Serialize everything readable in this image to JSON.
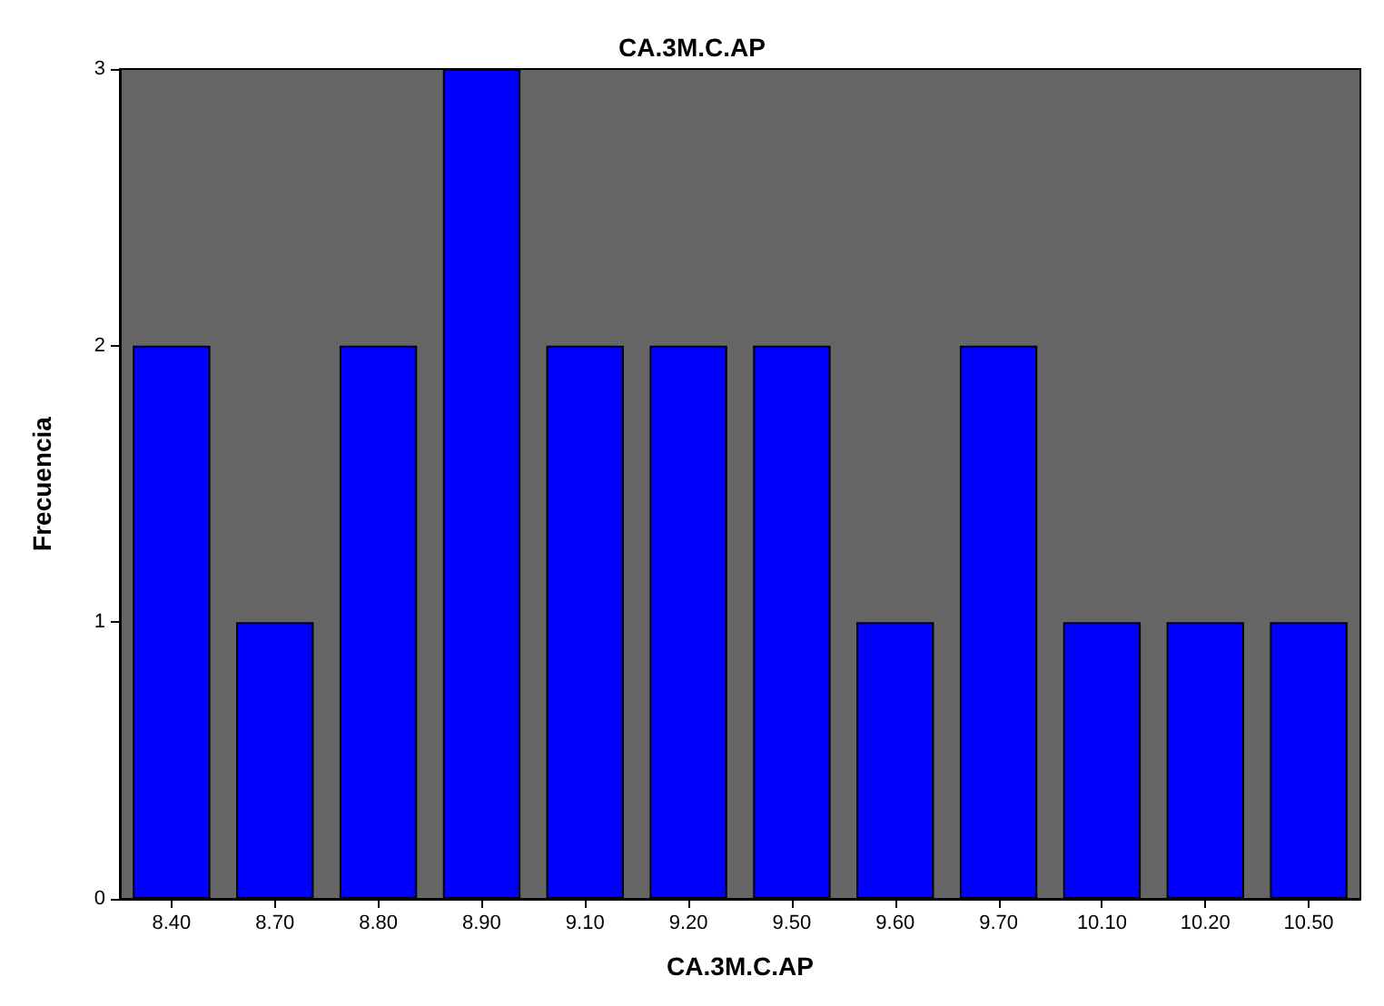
{
  "chart_data": {
    "type": "bar",
    "title": "CA.3M.C.AP",
    "xlabel": "CA.3M.C.AP",
    "ylabel": "Frecuencia",
    "categories": [
      "8.40",
      "8.70",
      "8.80",
      "8.90",
      "9.10",
      "9.20",
      "9.50",
      "9.60",
      "9.70",
      "10.10",
      "10.20",
      "10.50"
    ],
    "values": [
      2,
      1,
      2,
      3,
      2,
      2,
      2,
      1,
      2,
      1,
      1,
      1
    ],
    "color": "#0000ff",
    "ylim": [
      0,
      3
    ],
    "yticks": [
      0,
      1,
      2,
      3
    ],
    "grid": false
  }
}
